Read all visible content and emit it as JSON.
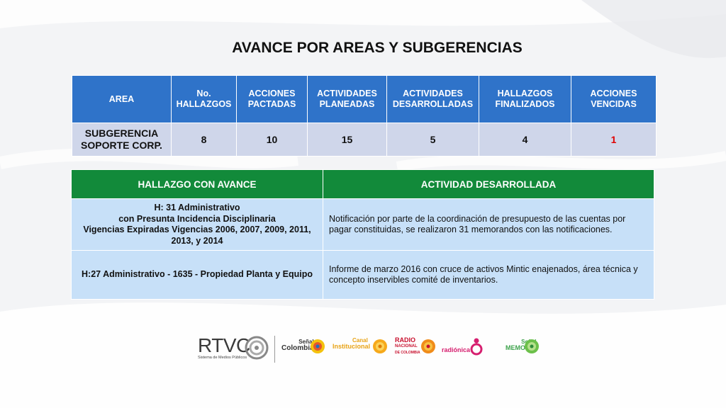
{
  "title": "AVANCE POR AREAS Y SUBGERENCIAS",
  "summary_table": {
    "headers": [
      "AREA",
      "No. HALLAZGOS",
      "ACCIONES PACTADAS",
      "ACTIVIDADES PLANEADAS",
      "ACTIVIDADES DESARROLLADAS",
      "HALLAZGOS FINALIZADOS",
      "ACCIONES VENCIDAS"
    ],
    "row": [
      "SUBGERENCIA SOPORTE CORP.",
      "8",
      "10",
      "15",
      "5",
      "4",
      "1"
    ]
  },
  "detail_table": {
    "headers": [
      "HALLAZGO CON AVANCE",
      "ACTIVIDAD  DESARROLLADA"
    ],
    "rows": [
      {
        "hallazgo_lines": [
          "H: 31 Administrativo",
          "con Presunta Incidencia Disciplinaria",
          "Vigencias Expiradas Vigencias 2006, 2007, 2009, 2011, 2013, y 2014"
        ],
        "actividad": "Notificación por parte de la coordinación de presupuesto de las cuentas por pagar constituidas, se realizaron 31 memorandos con las notificaciones."
      },
      {
        "hallazgo_lines": [
          "H:27 Administrativo - 1635 - Propiedad Planta y Equipo"
        ],
        "actividad": "Informe de marzo 2016 con cruce de activos  Mintic enajenados,  área técnica y concepto inservibles comité de inventarios."
      }
    ]
  },
  "logos": {
    "rtvc": "RTVC",
    "rtvc_sub": "Sistema de Medios Públicos",
    "senal_colombia": [
      "Señal",
      "Colombia"
    ],
    "canal_institucional": [
      "Canal",
      "Institucional"
    ],
    "radio_nacional": [
      "RADIO",
      "NACIONAL",
      "DE COLOMBIA"
    ],
    "radionica": "radiónica",
    "senal_memoria": [
      "Señal",
      "MEMORIA"
    ]
  },
  "colors": {
    "summary_header": "#2f73c9",
    "summary_cell": "#cfd6ea",
    "detail_header": "#128a3a",
    "detail_cell": "#c7e0f8",
    "overdue_value": "#e00000"
  }
}
